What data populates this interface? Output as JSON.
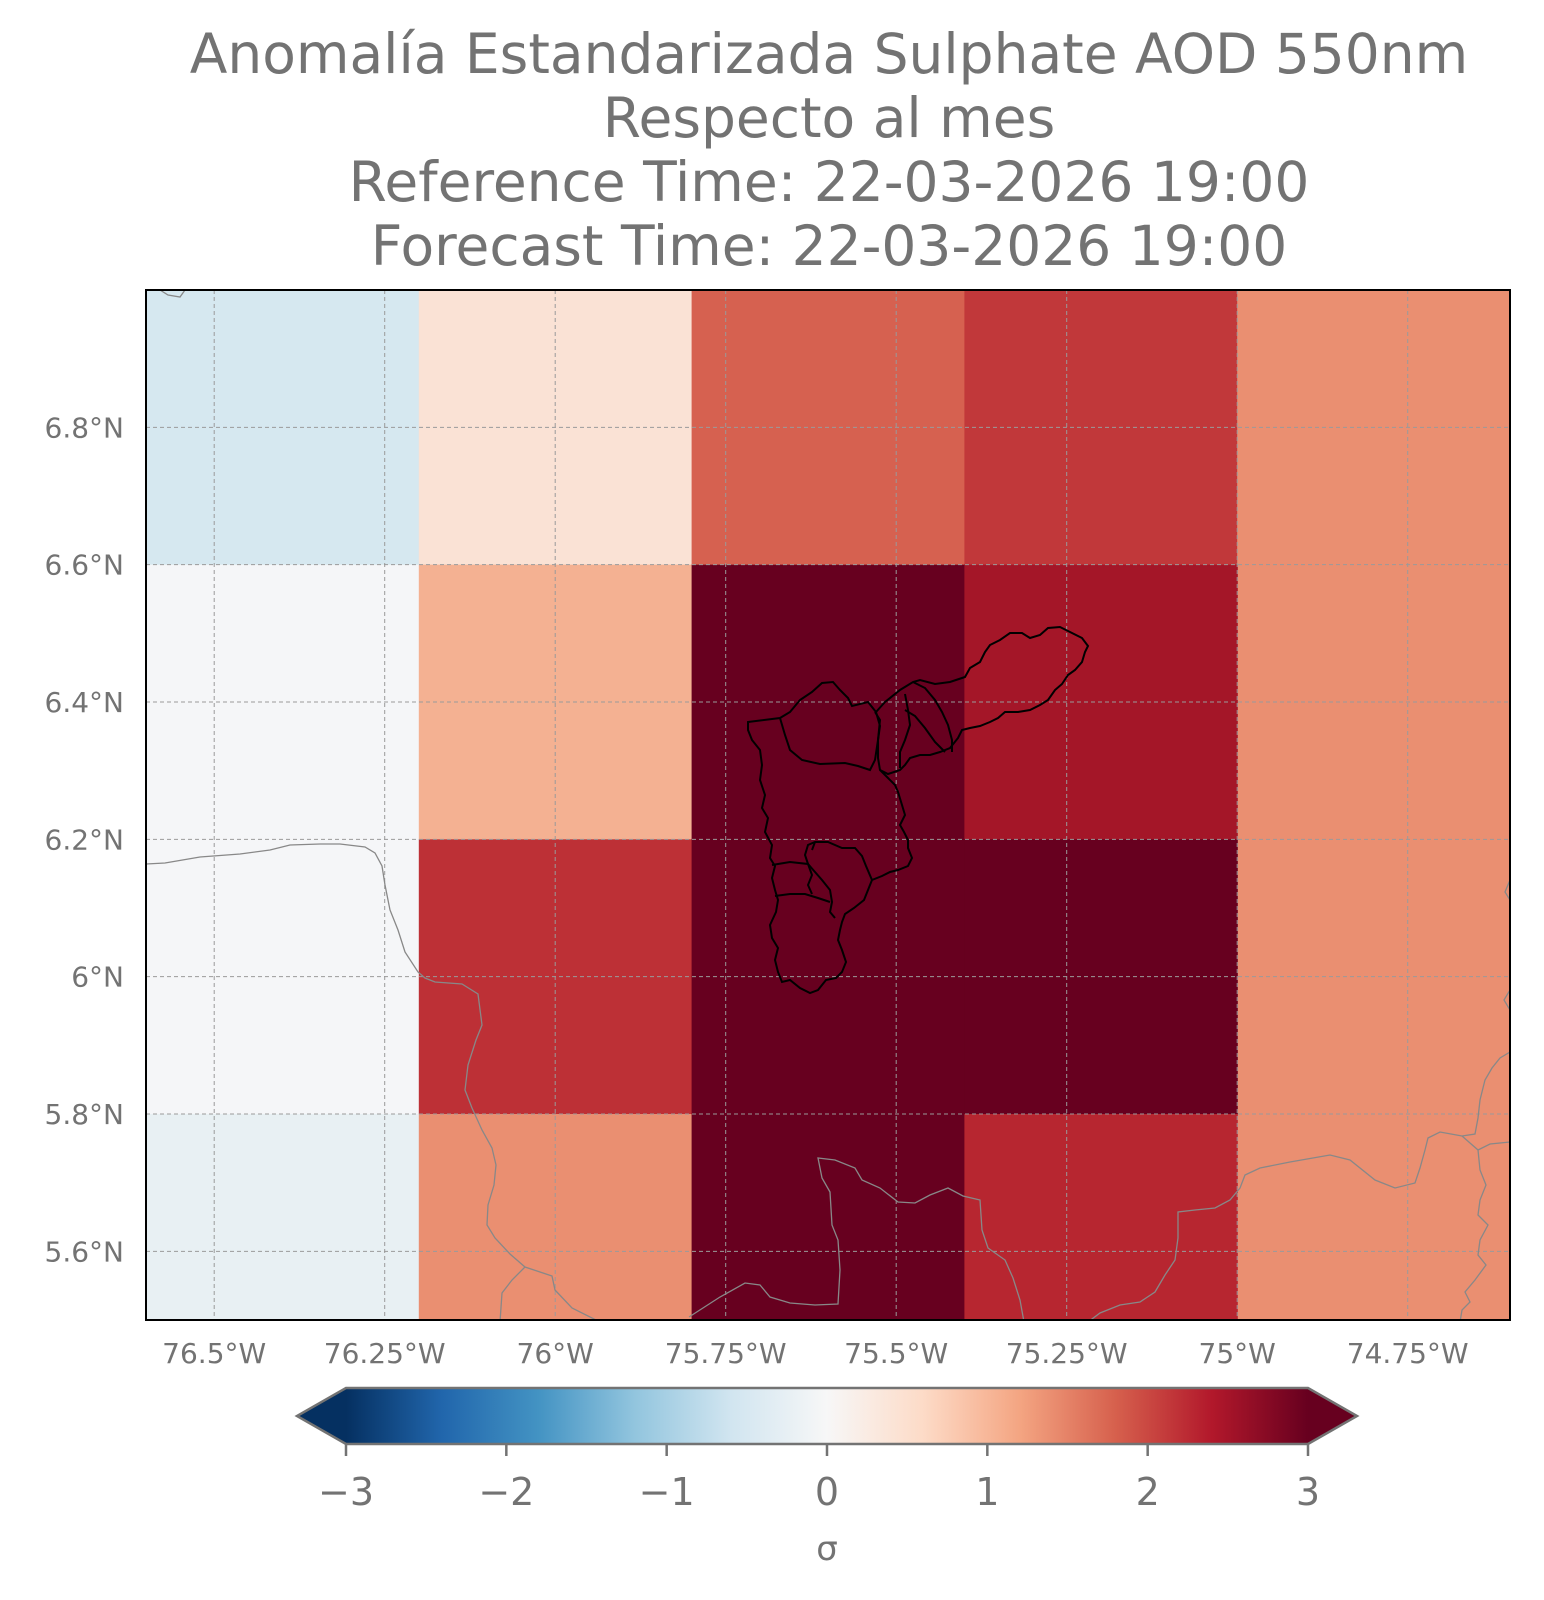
{
  "header": {
    "title_lines": [
      "Anomalía Estandarizada Sulphate AOD 550nm",
      "Respecto al mes",
      "Reference Time: 22-03-2026 19:00",
      "Forecast Time: 22-03-2026 19:00"
    ]
  },
  "map": {
    "lon_range": [
      -76.6,
      -74.6
    ],
    "lat_range": [
      5.5,
      7.0
    ],
    "lon_ticks": [
      {
        "value": -76.5,
        "label": "76.5°W"
      },
      {
        "value": -76.25,
        "label": "76.25°W"
      },
      {
        "value": -76.0,
        "label": "76°W"
      },
      {
        "value": -75.75,
        "label": "75.75°W"
      },
      {
        "value": -75.5,
        "label": "75.5°W"
      },
      {
        "value": -75.25,
        "label": "75.25°W"
      },
      {
        "value": -75.0,
        "label": "75°W"
      },
      {
        "value": -74.75,
        "label": "74.75°W"
      }
    ],
    "lat_ticks": [
      {
        "value": 5.6,
        "label": "5.6°N"
      },
      {
        "value": 5.8,
        "label": "5.8°N"
      },
      {
        "value": 6.0,
        "label": "6°N"
      },
      {
        "value": 6.2,
        "label": "6.2°N"
      },
      {
        "value": 6.4,
        "label": "6.4°N"
      },
      {
        "value": 6.6,
        "label": "6.6°N"
      },
      {
        "value": 6.8,
        "label": "6.8°N"
      }
    ],
    "grid_lines": "dashed",
    "cell_lon_edges": [
      -76.6,
      -76.2,
      -75.8,
      -75.4,
      -75.0,
      -74.6
    ],
    "cell_lat_edges": [
      7.0,
      6.6,
      6.2,
      5.8,
      5.5
    ],
    "anomaly_values": [
      [
        -0.6,
        0.4,
        1.8,
        2.3,
        1.4
      ],
      [
        -0.05,
        1.1,
        3.1,
        2.6,
        null
      ],
      [
        null,
        2.2,
        3.2,
        3.2,
        null
      ],
      [
        -0.15,
        1.4,
        3.1,
        2.3,
        null
      ]
    ],
    "cell_colors": [
      [
        "#d6e8f0",
        "#fae2d5",
        "#d66150",
        "#c1383a",
        "#ea8f71"
      ],
      [
        "#f5f6f8",
        "#f4b192",
        "#67001f",
        "#a41628",
        null
      ],
      [
        null,
        "#bd3036",
        "#67001f",
        "#67001f",
        null
      ],
      [
        "#e8f0f3",
        "#ea8f71",
        "#67001f",
        "#b72630",
        null
      ]
    ]
  },
  "colorbar": {
    "range": [
      -3,
      3
    ],
    "ticks": [
      {
        "value": -3,
        "label": "−3"
      },
      {
        "value": -2,
        "label": "−2"
      },
      {
        "value": -1,
        "label": "−1"
      },
      {
        "value": 0,
        "label": "0"
      },
      {
        "value": 1,
        "label": "1"
      },
      {
        "value": 2,
        "label": "2"
      },
      {
        "value": 3,
        "label": "3"
      }
    ],
    "label": "σ",
    "extend": "both",
    "colormap": "RdBu_r",
    "stops": [
      {
        "value": -3,
        "color": "#053061"
      },
      {
        "value": -2.4,
        "color": "#2166ac"
      },
      {
        "value": -1.8,
        "color": "#4393c3"
      },
      {
        "value": -1.2,
        "color": "#92c5de"
      },
      {
        "value": -0.6,
        "color": "#d1e5f0"
      },
      {
        "value": 0,
        "color": "#f7f7f7"
      },
      {
        "value": 0.6,
        "color": "#fddbc7"
      },
      {
        "value": 1.2,
        "color": "#f4a582"
      },
      {
        "value": 1.8,
        "color": "#d6604d"
      },
      {
        "value": 2.4,
        "color": "#b2182b"
      },
      {
        "value": 3,
        "color": "#67001f"
      }
    ]
  },
  "colors": {
    "text": "#737373",
    "grid": "#9a9a9a",
    "coastline": "#888888",
    "admin_borders": "#000000"
  }
}
